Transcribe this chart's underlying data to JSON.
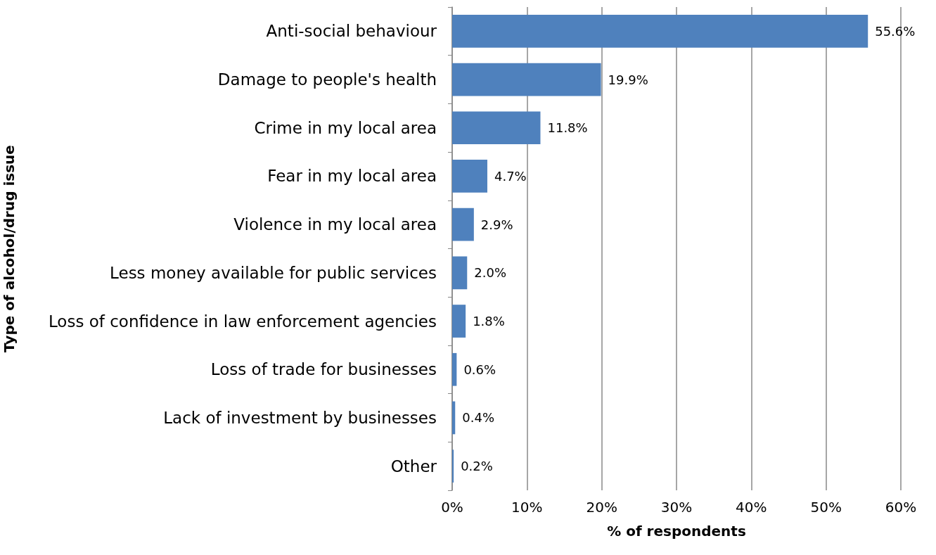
{
  "chart_data": {
    "type": "bar",
    "orientation": "horizontal",
    "xlabel": "% of respondents",
    "ylabel": "Type of alcohol/drug issue",
    "categories": [
      "Anti-social behaviour",
      "Damage to people's health",
      "Crime in my local area",
      "Fear in my local area",
      "Violence in my local area",
      "Less money available for public services",
      "Loss of confidence in law enforcement agencies",
      "Loss of trade for businesses",
      "Lack of investment by businesses",
      "Other"
    ],
    "values": [
      55.6,
      19.9,
      11.8,
      4.7,
      2.9,
      2.0,
      1.8,
      0.6,
      0.4,
      0.2
    ],
    "value_labels": [
      "55.6%",
      "19.9%",
      "11.8%",
      "4.7%",
      "2.9%",
      "2.0%",
      "1.8%",
      "0.6%",
      "0.4%",
      "0.2%"
    ],
    "color": "#4f81bd",
    "xlim": [
      0,
      60
    ],
    "xticks": [
      {
        "value": 0,
        "label": "0%"
      },
      {
        "value": 10,
        "label": "10%"
      },
      {
        "value": 20,
        "label": "20%"
      },
      {
        "value": 30,
        "label": "30%"
      },
      {
        "value": 40,
        "label": "40%"
      },
      {
        "value": 50,
        "label": "50%"
      },
      {
        "value": 60,
        "label": "60%"
      }
    ],
    "grid": "x"
  }
}
